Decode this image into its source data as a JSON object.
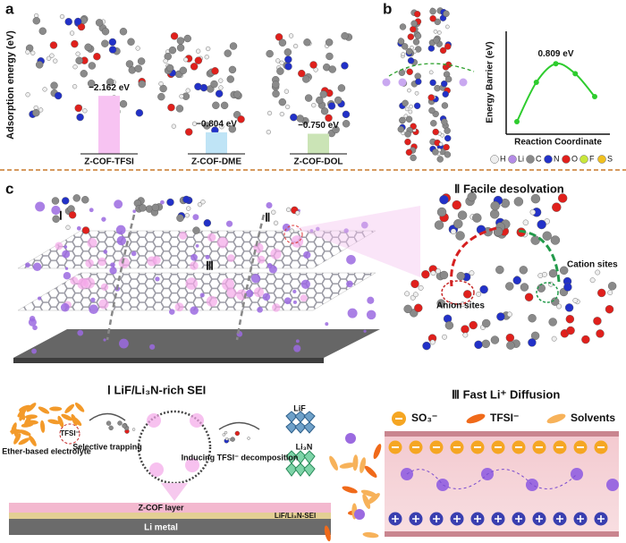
{
  "chart_data": [
    {
      "type": "bar",
      "ylabel": "Adsorption energy (eV)",
      "categories": [
        "Z-COF-TFSI",
        "Z-COF-DME",
        "Z-COF-DOL"
      ],
      "values": [
        -2.162,
        -0.804,
        -0.75
      ],
      "value_labels": [
        "−2.162 eV",
        "−0.804 eV",
        "−0.750 eV"
      ],
      "colors": [
        "#f7c3f2",
        "#bfe4f6",
        "#cbe4b6"
      ],
      "ylim": [
        0,
        -2.5
      ]
    },
    {
      "type": "line",
      "xlabel": "Reaction Coordinate",
      "ylabel": "Energy Barrier (eV)",
      "categories": [
        null,
        null,
        null,
        null,
        null
      ],
      "values": [
        0,
        0.55,
        0.809,
        0.67,
        0.35
      ],
      "value_labels": [
        null,
        null,
        "0.809 eV",
        null,
        null
      ],
      "color": "#2ecc2e",
      "ylim": [
        0,
        1
      ]
    }
  ],
  "panel_labels": [
    "a",
    "b",
    "c"
  ],
  "elements": [
    {
      "symbol": "H",
      "color": "#eeeeee"
    },
    {
      "symbol": "Li",
      "color": "#b48be6"
    },
    {
      "symbol": "C",
      "color": "#8a8a8a"
    },
    {
      "symbol": "N",
      "color": "#2231c8"
    },
    {
      "symbol": "O",
      "color": "#e0201c"
    },
    {
      "symbol": "F",
      "color": "#c8e63a"
    },
    {
      "symbol": "S",
      "color": "#f0c020"
    }
  ],
  "panel_c": {
    "numerals": [
      "Ⅰ",
      "Ⅱ",
      "Ⅲ"
    ],
    "desolvation_title": "Ⅱ  Facile desolvation",
    "cation_sites": "Cation sites",
    "anion_sites": "Anion sites",
    "sei_title": "Ⅰ  LiF/Li₃N-rich SEI",
    "tfsi_circle": "TFSI⁻",
    "ether": "Ether-based electrolyte",
    "trapping": "Selective trapping",
    "decomposition": "Inducing TFSI⁻ decomposition",
    "lif": "LiF",
    "li3n": "Li₃N",
    "zcof_layer": "Z-COF layer",
    "sei_layer": "LiF/Li₃N-SEI",
    "li_metal": "Li metal",
    "diffusion_title": "Ⅲ  Fast Li⁺ Diffusion",
    "legend": [
      "SO₃⁻",
      "TFSI⁻",
      "Solvents"
    ]
  }
}
